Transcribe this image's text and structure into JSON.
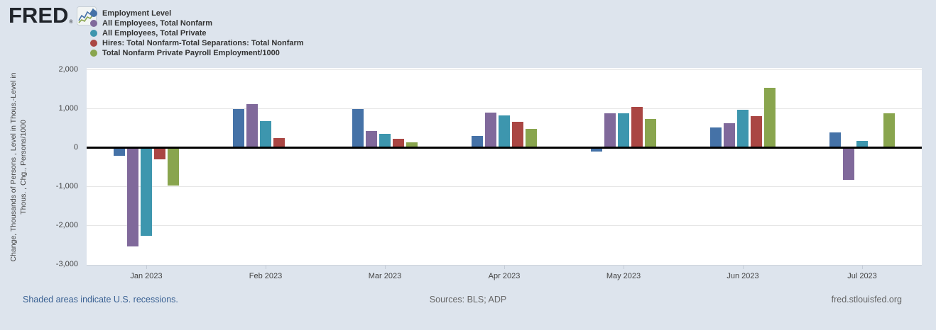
{
  "brand": {
    "logo_text": "FRED",
    "registered": "®"
  },
  "legend": [
    {
      "label": "Employment Level",
      "color": "#4572a7"
    },
    {
      "label": "All Employees, Total Nonfarm",
      "color": "#80699b"
    },
    {
      "label": "All Employees, Total Private",
      "color": "#3d96ae"
    },
    {
      "label": "Hires: Total Nonfarm-Total Separations: Total Nonfarm",
      "color": "#aa4643"
    },
    {
      "label": "Total Nonfarm Private Payroll Employment/1000",
      "color": "#89a54e"
    }
  ],
  "chart_data": {
    "type": "bar",
    "title": "",
    "categories": [
      "Jan 2023",
      "Feb 2023",
      "Mar 2023",
      "Apr 2023",
      "May 2023",
      "Jun 2023",
      "Jul 2023"
    ],
    "series": [
      {
        "name": "Employment Level",
        "color": "#4572a7",
        "values": [
          -210,
          980,
          980,
          300,
          -110,
          510,
          390
        ]
      },
      {
        "name": "All Employees, Total Nonfarm",
        "color": "#80699b",
        "values": [
          -2540,
          1110,
          420,
          890,
          870,
          620,
          -840
        ]
      },
      {
        "name": "All Employees, Total Private",
        "color": "#3d96ae",
        "values": [
          -2270,
          680,
          350,
          810,
          880,
          970,
          160
        ]
      },
      {
        "name": "Hires: Total Nonfarm-Total Separations: Total Nonfarm",
        "color": "#aa4643",
        "values": [
          -310,
          240,
          220,
          660,
          1030,
          800,
          null
        ]
      },
      {
        "name": "Total Nonfarm Private Payroll Employment/1000",
        "color": "#89a54e",
        "values": [
          -980,
          null,
          130,
          470,
          720,
          1520,
          870
        ]
      }
    ],
    "ylabel_line1": "Change, Thousands of Persons , Level in Thous.-Level in",
    "ylabel_line2": "Thous. , Chg., Persons/1000",
    "xlabel": "",
    "y_ticks": [
      {
        "value": 2000,
        "label": "2,000"
      },
      {
        "value": 1000,
        "label": "1,000"
      },
      {
        "value": 0,
        "label": "0"
      },
      {
        "value": -1000,
        "label": "-1,000"
      },
      {
        "value": -2000,
        "label": "-2,000"
      },
      {
        "value": -3000,
        "label": "-3,000"
      }
    ],
    "ylim": [
      -3000,
      2000
    ],
    "grid": true,
    "legend_position": "top-left"
  },
  "footer": {
    "recession_note": "Shaded areas indicate U.S. recessions.",
    "sources": "Sources: BLS; ADP",
    "site": "fred.stlouisfed.org"
  }
}
